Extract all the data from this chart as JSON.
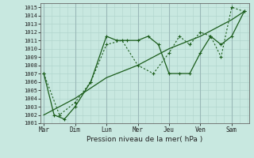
{
  "xlabel": "Pression niveau de la mer( hPa )",
  "bg_color": "#c8e8e0",
  "grid_color_h": "#b0d4cc",
  "grid_color_v": "#9ab8b8",
  "line_color": "#1a5c1a",
  "xtick_labels": [
    "Mar",
    "Dim",
    "Lun",
    "Mer",
    "Jeu",
    "Ven",
    "Sam"
  ],
  "xtick_positions": [
    0,
    1,
    2,
    3,
    4,
    5,
    6
  ],
  "ylim_lo": 1001,
  "ylim_hi": 1015.5,
  "yticks": [
    1001,
    1002,
    1003,
    1004,
    1005,
    1006,
    1007,
    1008,
    1009,
    1010,
    1011,
    1012,
    1013,
    1014,
    1015
  ],
  "line1_x": [
    0,
    0.33,
    0.66,
    1.0,
    1.5,
    2.0,
    2.33,
    2.66,
    3.0,
    3.33,
    3.66,
    4.0,
    4.33,
    4.66,
    5.0,
    5.33,
    5.66,
    6.0,
    6.4
  ],
  "line1_y": [
    1007,
    1002,
    1001.5,
    1003,
    1006,
    1011.5,
    1011,
    1011,
    1011,
    1011.5,
    1010.5,
    1007,
    1007,
    1007,
    1009.5,
    1011.5,
    1010.5,
    1011.5,
    1014.5
  ],
  "line2_x": [
    0,
    0.5,
    1.0,
    1.5,
    2.0,
    2.5,
    3.0,
    3.5,
    4.0,
    4.33,
    4.66,
    5.0,
    5.33,
    5.66,
    6.0,
    6.4
  ],
  "line2_y": [
    1007,
    1002,
    1003.5,
    1006,
    1010.5,
    1011.0,
    1008,
    1007,
    1009.5,
    1011.5,
    1010.5,
    1012,
    1011.5,
    1009,
    1015,
    1014.5
  ],
  "line3_x": [
    0,
    1.0,
    2.0,
    3.0,
    4.0,
    5.0,
    6.0,
    6.4
  ],
  "line3_y": [
    1002,
    1004,
    1006.5,
    1008,
    1010,
    1011.5,
    1013.5,
    1014.5
  ]
}
